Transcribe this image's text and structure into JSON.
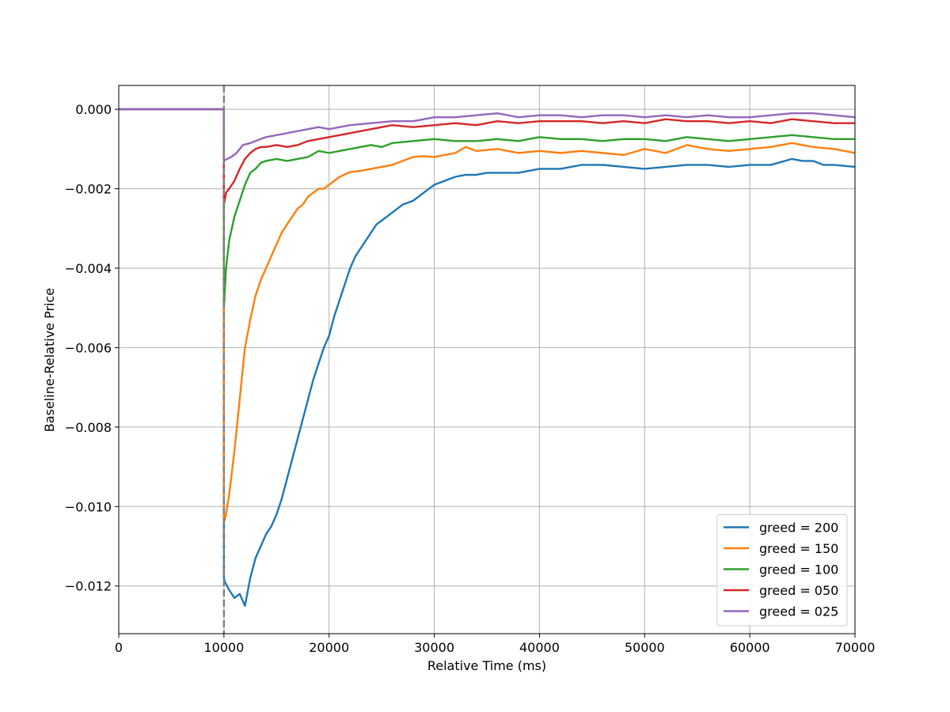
{
  "chart_data": {
    "type": "line",
    "title": "",
    "xlabel": "Relative Time (ms)",
    "ylabel": "Baseline-Relative Price",
    "xlim": [
      0,
      70000
    ],
    "ylim": [
      -0.0132,
      0.0006
    ],
    "x_ticks": [
      0,
      10000,
      20000,
      30000,
      40000,
      50000,
      60000,
      70000
    ],
    "x_tick_labels": [
      "0",
      "10000",
      "20000",
      "30000",
      "40000",
      "50000",
      "60000",
      "70000"
    ],
    "y_ticks": [
      0,
      -0.002,
      -0.004,
      -0.006,
      -0.008,
      -0.01,
      -0.012
    ],
    "y_tick_labels": [
      "0.000",
      "−0.002",
      "−0.004",
      "−0.006",
      "−0.008",
      "−0.010",
      "−0.012"
    ],
    "grid": true,
    "legend_position": "lower-right",
    "vline": {
      "x": 10000,
      "color": "#7f7f7f",
      "style": "dashed"
    },
    "series": [
      {
        "name": "greed = 200",
        "color": "#1f77b4",
        "x": [
          0,
          9990,
          10000,
          10100,
          10500,
          11000,
          11500,
          12000,
          12500,
          13000,
          13500,
          14000,
          14500,
          15000,
          15500,
          16000,
          16500,
          17000,
          17500,
          18000,
          18500,
          19000,
          19500,
          20000,
          20500,
          21000,
          21500,
          22000,
          22500,
          23000,
          23500,
          24000,
          24500,
          25000,
          25500,
          26000,
          27000,
          28000,
          29000,
          30000,
          31000,
          32000,
          33000,
          34000,
          35000,
          36000,
          38000,
          40000,
          42000,
          44000,
          46000,
          48000,
          50000,
          52000,
          54000,
          56000,
          58000,
          60000,
          62000,
          64000,
          65000,
          66000,
          67000,
          68000,
          70000
        ],
        "y": [
          0,
          0,
          -0.0118,
          -0.0119,
          -0.0121,
          -0.0123,
          -0.0122,
          -0.0125,
          -0.0118,
          -0.0113,
          -0.011,
          -0.0107,
          -0.0105,
          -0.0102,
          -0.0098,
          -0.0093,
          -0.0088,
          -0.0083,
          -0.0078,
          -0.0073,
          -0.0068,
          -0.0064,
          -0.006,
          -0.0057,
          -0.0052,
          -0.0048,
          -0.0044,
          -0.004,
          -0.0037,
          -0.0035,
          -0.0033,
          -0.0031,
          -0.0029,
          -0.0028,
          -0.0027,
          -0.0026,
          -0.0024,
          -0.0023,
          -0.0021,
          -0.0019,
          -0.0018,
          -0.0017,
          -0.00165,
          -0.00165,
          -0.0016,
          -0.0016,
          -0.0016,
          -0.0015,
          -0.0015,
          -0.0014,
          -0.0014,
          -0.00145,
          -0.0015,
          -0.00145,
          -0.0014,
          -0.0014,
          -0.00145,
          -0.0014,
          -0.0014,
          -0.00125,
          -0.0013,
          -0.0013,
          -0.0014,
          -0.0014,
          -0.00145
        ]
      },
      {
        "name": "greed = 150",
        "color": "#ff7f0e",
        "x": [
          0,
          9990,
          10000,
          10200,
          10500,
          11000,
          11500,
          12000,
          12500,
          13000,
          13500,
          14000,
          14500,
          15000,
          15500,
          16000,
          16500,
          17000,
          17500,
          18000,
          18500,
          19000,
          19500,
          20000,
          21000,
          22000,
          23000,
          24000,
          25000,
          26000,
          27000,
          28000,
          29000,
          30000,
          31000,
          32000,
          33000,
          34000,
          36000,
          38000,
          40000,
          42000,
          44000,
          46000,
          48000,
          50000,
          52000,
          54000,
          56000,
          58000,
          60000,
          62000,
          64000,
          66000,
          68000,
          70000
        ],
        "y": [
          0,
          0,
          -0.0104,
          -0.0102,
          -0.0097,
          -0.0086,
          -0.0073,
          -0.006,
          -0.0053,
          -0.0047,
          -0.0043,
          -0.004,
          -0.0037,
          -0.0034,
          -0.0031,
          -0.0029,
          -0.0027,
          -0.0025,
          -0.0024,
          -0.0022,
          -0.0021,
          -0.002,
          -0.002,
          -0.0019,
          -0.0017,
          -0.00158,
          -0.00155,
          -0.0015,
          -0.00145,
          -0.0014,
          -0.0013,
          -0.0012,
          -0.00118,
          -0.0012,
          -0.00115,
          -0.0011,
          -0.00095,
          -0.00105,
          -0.001,
          -0.0011,
          -0.00105,
          -0.0011,
          -0.00105,
          -0.0011,
          -0.00115,
          -0.001,
          -0.0011,
          -0.0009,
          -0.001,
          -0.00105,
          -0.001,
          -0.00095,
          -0.00085,
          -0.00095,
          -0.001,
          -0.0011
        ]
      },
      {
        "name": "greed = 100",
        "color": "#2ca02c",
        "x": [
          0,
          9990,
          10000,
          10200,
          10500,
          11000,
          11500,
          12000,
          12500,
          13000,
          13500,
          14000,
          15000,
          16000,
          17000,
          18000,
          19000,
          20000,
          21000,
          22000,
          23000,
          24000,
          25000,
          26000,
          28000,
          30000,
          32000,
          34000,
          36000,
          38000,
          40000,
          42000,
          44000,
          46000,
          48000,
          50000,
          52000,
          54000,
          56000,
          58000,
          60000,
          62000,
          64000,
          66000,
          68000,
          70000
        ],
        "y": [
          0,
          0,
          -0.005,
          -0.004,
          -0.0033,
          -0.0027,
          -0.0023,
          -0.0019,
          -0.0016,
          -0.0015,
          -0.00135,
          -0.0013,
          -0.00125,
          -0.0013,
          -0.00125,
          -0.0012,
          -0.00105,
          -0.0011,
          -0.00105,
          -0.001,
          -0.00095,
          -0.0009,
          -0.00095,
          -0.00085,
          -0.0008,
          -0.00075,
          -0.0008,
          -0.0008,
          -0.00075,
          -0.0008,
          -0.0007,
          -0.00075,
          -0.00075,
          -0.0008,
          -0.00075,
          -0.00075,
          -0.0008,
          -0.0007,
          -0.00075,
          -0.0008,
          -0.00075,
          -0.0007,
          -0.00065,
          -0.0007,
          -0.00075,
          -0.00075
        ]
      },
      {
        "name": "greed = 050",
        "color": "#d62728",
        "x": [
          0,
          9990,
          10000,
          10200,
          10500,
          11000,
          11500,
          12000,
          12500,
          13000,
          13500,
          14000,
          15000,
          16000,
          17000,
          18000,
          19000,
          20000,
          22000,
          24000,
          26000,
          28000,
          30000,
          32000,
          34000,
          36000,
          38000,
          40000,
          42000,
          44000,
          46000,
          48000,
          50000,
          52000,
          54000,
          56000,
          58000,
          60000,
          62000,
          64000,
          66000,
          68000,
          70000
        ],
        "y": [
          0,
          0,
          -0.0024,
          -0.0021,
          -0.002,
          -0.0018,
          -0.0015,
          -0.00125,
          -0.0011,
          -0.001,
          -0.00095,
          -0.00095,
          -0.0009,
          -0.00095,
          -0.0009,
          -0.0008,
          -0.00075,
          -0.0007,
          -0.0006,
          -0.0005,
          -0.0004,
          -0.00045,
          -0.0004,
          -0.00035,
          -0.0004,
          -0.0003,
          -0.00035,
          -0.0003,
          -0.0003,
          -0.0003,
          -0.00035,
          -0.0003,
          -0.00035,
          -0.00025,
          -0.0003,
          -0.0003,
          -0.00035,
          -0.0003,
          -0.00035,
          -0.00025,
          -0.0003,
          -0.00035,
          -0.00035
        ]
      },
      {
        "name": "greed = 025",
        "color": "#9467bd",
        "x": [
          0,
          9990,
          10000,
          10300,
          10700,
          11200,
          11800,
          12500,
          13000,
          14000,
          15000,
          16000,
          17000,
          18000,
          19000,
          20000,
          22000,
          24000,
          26000,
          28000,
          30000,
          32000,
          34000,
          36000,
          38000,
          40000,
          42000,
          44000,
          46000,
          48000,
          50000,
          52000,
          54000,
          56000,
          58000,
          60000,
          62000,
          64000,
          66000,
          68000,
          70000
        ],
        "y": [
          0,
          0,
          -0.0013,
          -0.00125,
          -0.0012,
          -0.0011,
          -0.0009,
          -0.00085,
          -0.0008,
          -0.0007,
          -0.00065,
          -0.0006,
          -0.00055,
          -0.0005,
          -0.00045,
          -0.0005,
          -0.0004,
          -0.00035,
          -0.0003,
          -0.0003,
          -0.0002,
          -0.0002,
          -0.00015,
          -0.0001,
          -0.0002,
          -0.00015,
          -0.00015,
          -0.0002,
          -0.00015,
          -0.00015,
          -0.0002,
          -0.00015,
          -0.0002,
          -0.00015,
          -0.0002,
          -0.0002,
          -0.00015,
          -0.0001,
          -0.0001,
          -0.00015,
          -0.0002
        ]
      }
    ]
  }
}
